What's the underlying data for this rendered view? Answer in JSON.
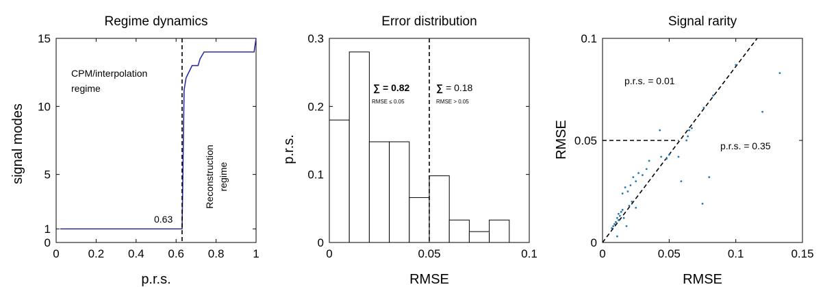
{
  "chart_data": [
    {
      "type": "line",
      "title": "Regime dynamics",
      "xlabel": "p.r.s.",
      "ylabel": "signal modes",
      "xlim": [
        0,
        1
      ],
      "ylim": [
        0,
        15
      ],
      "xticks": [
        0,
        0.2,
        0.4,
        0.6,
        0.8,
        1
      ],
      "xtick_labels": [
        "0",
        "0.2",
        "0.4",
        "0.6",
        "0.8",
        "1"
      ],
      "yticks": [
        0,
        1,
        5,
        10,
        15
      ],
      "ytick_labels": [
        "0",
        "1",
        "5",
        "10",
        "15"
      ],
      "series": [
        {
          "color": "#2b2fa0",
          "x": [
            0.02,
            0.62,
            0.63,
            0.64,
            0.65,
            0.66,
            0.68,
            0.7,
            0.71,
            0.72,
            0.74,
            0.99,
            1.0
          ],
          "y": [
            1,
            1,
            1,
            11.2,
            12.1,
            12.4,
            13,
            13,
            13,
            13.5,
            14,
            14,
            15
          ]
        }
      ],
      "vline": 0.63,
      "annotations": {
        "threshold": "0.63",
        "regime_left_line1": "CPM/interpolation",
        "regime_left_line2": "regime",
        "regime_right_line1": "Reconstruction",
        "regime_right_line2": "regime"
      },
      "grid": false
    },
    {
      "type": "bar",
      "title": "Error distribution",
      "xlabel": "RMSE",
      "ylabel": "p.r.s.",
      "xlim": [
        0,
        0.1
      ],
      "ylim": [
        0,
        0.3
      ],
      "xticks": [
        0,
        0.05,
        0.1
      ],
      "xtick_labels": [
        "0",
        "0.05",
        "0.1"
      ],
      "yticks": [
        0,
        0.1,
        0.2,
        0.3
      ],
      "ytick_labels": [
        "0",
        "0.1",
        "0.2",
        "0.3"
      ],
      "bin_edges": [
        0,
        0.01,
        0.02,
        0.03,
        0.04,
        0.05,
        0.06,
        0.07,
        0.08,
        0.09
      ],
      "values": [
        0.18,
        0.28,
        0.148,
        0.148,
        0.066,
        0.098,
        0.033,
        0.016,
        0.033
      ],
      "vline": 0.05,
      "annotations": {
        "left_sum_symbol": "∑",
        "left_sum_value": "= 0.82",
        "left_condition": "RMSE ≤ 0.05",
        "right_sum_symbol": "∑",
        "right_sum_value": "= 0.18",
        "right_condition": "RMSE > 0.05"
      },
      "grid": false
    },
    {
      "type": "scatter",
      "title": "Signal rarity",
      "xlabel": "RMSE",
      "ylabel": "RMSE",
      "xlim": [
        0,
        0.15
      ],
      "ylim": [
        0,
        0.1
      ],
      "xticks": [
        0,
        0.05,
        0.1,
        0.15
      ],
      "xtick_labels": [
        "0",
        "0.05",
        "0.1",
        "0.15"
      ],
      "yticks": [
        0,
        0.05,
        0.1
      ],
      "ytick_labels": [
        "0",
        "0.05",
        "0.1"
      ],
      "points_color": "#1f77b4",
      "points": [
        [
          0.007,
          0.007
        ],
        [
          0.008,
          0.008
        ],
        [
          0.009,
          0.009
        ],
        [
          0.01,
          0.01
        ],
        [
          0.011,
          0.012
        ],
        [
          0.012,
          0.011
        ],
        [
          0.013,
          0.013
        ],
        [
          0.012,
          0.014
        ],
        [
          0.014,
          0.015
        ],
        [
          0.015,
          0.016
        ],
        [
          0.016,
          0.012
        ],
        [
          0.011,
          0.003
        ],
        [
          0.018,
          0.008
        ],
        [
          0.02,
          0.018
        ],
        [
          0.022,
          0.02
        ],
        [
          0.019,
          0.025
        ],
        [
          0.021,
          0.028
        ],
        [
          0.023,
          0.032
        ],
        [
          0.025,
          0.03
        ],
        [
          0.027,
          0.034
        ],
        [
          0.015,
          0.024
        ],
        [
          0.017,
          0.027
        ],
        [
          0.025,
          0.017
        ],
        [
          0.03,
          0.033
        ],
        [
          0.033,
          0.036
        ],
        [
          0.035,
          0.04
        ],
        [
          0.044,
          0.042
        ],
        [
          0.048,
          0.041
        ],
        [
          0.05,
          0.043
        ],
        [
          0.043,
          0.055
        ],
        [
          0.057,
          0.042
        ],
        [
          0.059,
          0.03
        ],
        [
          0.063,
          0.05
        ],
        [
          0.064,
          0.052
        ],
        [
          0.065,
          0.055
        ],
        [
          0.067,
          0.056
        ],
        [
          0.076,
          0.066
        ],
        [
          0.083,
          0.072
        ],
        [
          0.08,
          0.032
        ],
        [
          0.075,
          0.019
        ],
        [
          0.1,
          0.087
        ],
        [
          0.12,
          0.064
        ],
        [
          0.133,
          0.083
        ]
      ],
      "diagonal": [
        [
          0,
          0
        ],
        [
          0.116,
          0.1
        ]
      ],
      "hline": {
        "y": 0.05,
        "x_end": 0.057
      },
      "annotations": {
        "upper": "p.r.s. = 0.01",
        "lower": "p.r.s. = 0.35"
      },
      "grid": false
    }
  ]
}
